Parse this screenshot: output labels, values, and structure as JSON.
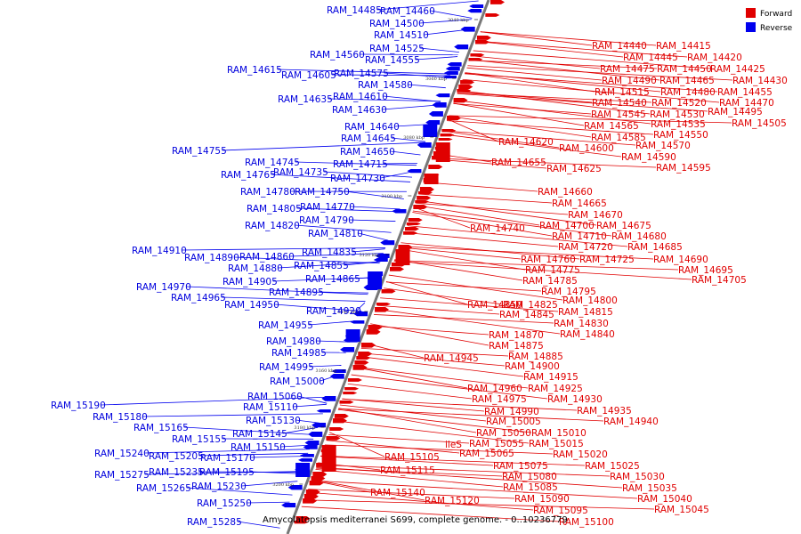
{
  "caption": "Amycolatopsis mediterranei S699, complete genome. - 0..10236779",
  "legend": [
    {
      "label": "Forward",
      "color": "#e00000"
    },
    {
      "label": "Reverse",
      "color": "#0000ee"
    }
  ],
  "colors": {
    "forward": "#e00000",
    "reverse": "#0000ee",
    "backbone": "#888888"
  },
  "ticks": [
    "3040 kbp",
    "3060 kbp",
    "3080 kbp",
    "3100 kbp",
    "3120 kbp",
    "3140 kbp",
    "3160 kbp",
    "3180 kbp",
    "3200 kbp"
  ],
  "reverse_labels": [
    "RAM_14485",
    "RAM_14460",
    "RAM_14500",
    "RAM_14510",
    "RAM_14525",
    "RAM_14560",
    "RAM_14555",
    "RAM_14615",
    "RAM_14575",
    "RAM_14605",
    "RAM_14580",
    "RAM_14635",
    "RAM_14610",
    "RAM_14630",
    "RAM_14640",
    "RAM_14645",
    "RAM_14650",
    "RAM_14755",
    "RAM_14745",
    "RAM_14715",
    "RAM_14765",
    "RAM_14735",
    "RAM_14730",
    "RAM_14780",
    "RAM_14750",
    "RAM_14805",
    "RAM_14770",
    "RAM_14790",
    "RAM_14820",
    "RAM_14810",
    "RAM_14910",
    "RAM_14835",
    "RAM_14890",
    "RAM_14860",
    "RAM_14880",
    "RAM_14855",
    "RAM_14865",
    "RAM_14905",
    "RAM_14970",
    "RAM_14895",
    "RAM_14965",
    "RAM_14950",
    "RAM_14920",
    "RAM_14955",
    "RAM_14980",
    "RAM_14985",
    "RAM_14995",
    "RAM_15000",
    "RAM_15060",
    "RAM_15190",
    "RAM_15110",
    "RAM_15180",
    "RAM_15130",
    "RAM_15165",
    "RAM_15155",
    "RAM_15145",
    "RAM_15150",
    "RAM_15240",
    "RAM_15205",
    "RAM_15170",
    "RAM_15275",
    "RAM_15235",
    "RAM_15195",
    "RAM_15230",
    "RAM_15265",
    "RAM_15250",
    "RAM_15285"
  ],
  "forward_labels": [
    "RAM_14440",
    "RAM_14415",
    "RAM_14445",
    "RAM_14420",
    "RAM_14475",
    "RAM_14450",
    "RAM_14425",
    "RAM_14490",
    "RAM_14465",
    "RAM_14430",
    "RAM_14515",
    "RAM_14480",
    "RAM_14455",
    "RAM_14540",
    "RAM_14520",
    "RAM_14470",
    "RAM_14545",
    "RAM_14530",
    "RAM_14495",
    "RAM_14565",
    "RAM_14535",
    "RAM_14505",
    "RAM_14585",
    "RAM_14550",
    "RAM_14620",
    "RAM_14600",
    "RAM_14570",
    "RAM_14590",
    "RAM_14655",
    "RAM_14625",
    "RAM_14595",
    "RAM_14660",
    "RAM_14665",
    "RAM_14670",
    "RAM_14700",
    "RAM_14675",
    "RAM_14740",
    "RAM_14710",
    "RAM_14680",
    "RAM_14720",
    "RAM_14685",
    "RAM_14760",
    "RAM_14725",
    "RAM_14690",
    "RAM_14775",
    "RAM_14695",
    "RAM_14785",
    "RAM_14705",
    "RAM_14795",
    "RAM_14850",
    "RAM_14825",
    "RAM_14800",
    "RAM_14845",
    "RAM_14815",
    "RAM_14830",
    "RAM_14840",
    "RAM_14870",
    "RAM_14875",
    "RAM_14885",
    "RAM_14945",
    "RAM_14900",
    "RAM_14915",
    "RAM_14960",
    "RAM_14925",
    "RAM_14975",
    "RAM_14930",
    "RAM_14935",
    "RAM_14990",
    "RAM_14940",
    "RAM_15005",
    "RAM_15050",
    "RAM_15010",
    "RAM_15055",
    "RAM_15015",
    "RAM_15065",
    "RAM_15020",
    "RAM_15105",
    "RAM_15075",
    "RAM_15025",
    "RAM_15115",
    "RAM_15080",
    "RAM_15030",
    "RAM_15085",
    "RAM_15035",
    "RAM_15140",
    "RAM_15090",
    "RAM_15040",
    "RAM_15120",
    "RAM_15095",
    "RAM_15045",
    "RAM_15100"
  ],
  "gene_label": "ileS"
}
